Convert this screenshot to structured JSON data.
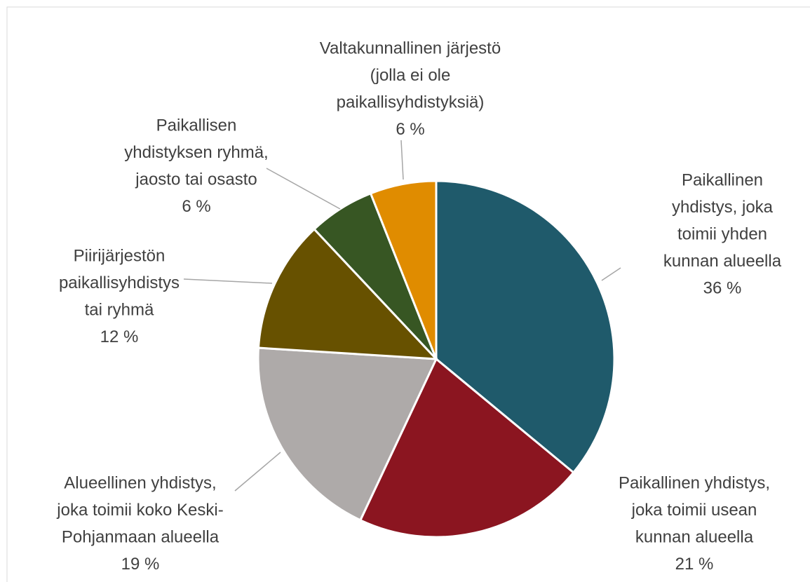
{
  "chart_data": {
    "type": "pie",
    "categories": [
      [
        "Paikallinen",
        "yhdistys, joka",
        "toimii yhden",
        "kunnan alueella"
      ],
      [
        "Paikallinen yhdistys,",
        "joka toimii usean",
        "kunnan alueella"
      ],
      [
        "Alueellinen yhdistys,",
        "joka toimii koko Keski-",
        "Pohjanmaan alueella"
      ],
      [
        "Piirijärjestön",
        "paikallisyhdistys",
        "tai ryhmä"
      ],
      [
        "Paikallisen",
        "yhdistyksen ryhmä,",
        "jaosto tai osasto"
      ],
      [
        "Valtakunnallinen järjestö",
        "(jolla ei ole",
        "paikallisyhdistyksiä)"
      ]
    ],
    "values": [
      36,
      21,
      19,
      12,
      6,
      6
    ],
    "value_labels": [
      "36 %",
      "21 %",
      "19 %",
      "12 %",
      "6 %",
      "6 %"
    ],
    "colors": [
      "#1f5a6b",
      "#8b1520",
      "#aeaaa9",
      "#675100",
      "#375623",
      "#e08c00"
    ]
  }
}
